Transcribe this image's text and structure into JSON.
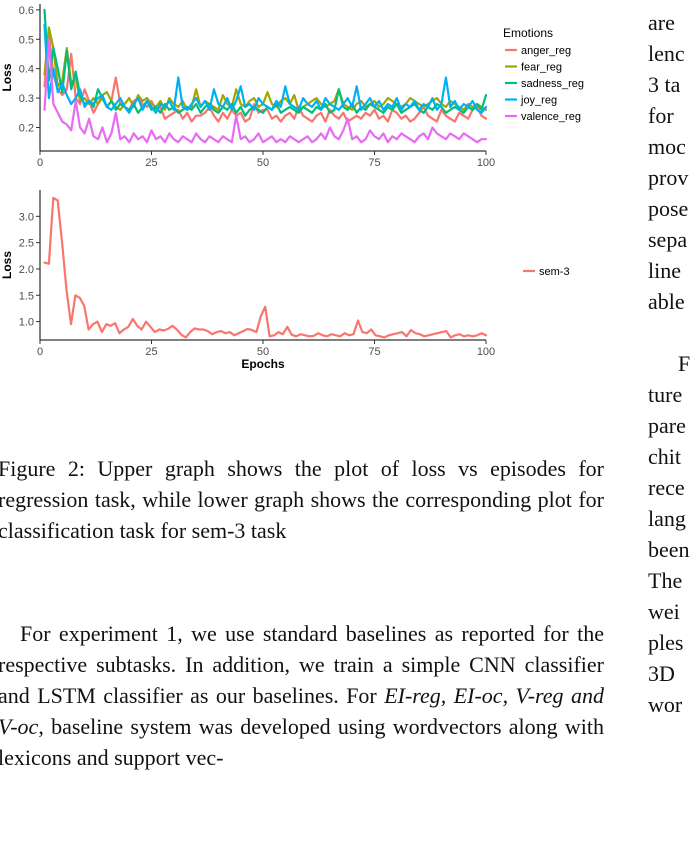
{
  "chart_data": [
    {
      "type": "line",
      "xlabel": "",
      "ylabel": "Loss",
      "xlim": [
        0,
        100
      ],
      "ylim": [
        0.12,
        0.62
      ],
      "xticks": [
        0,
        25,
        50,
        75,
        100
      ],
      "yticks": [
        0.2,
        0.3,
        0.4,
        0.5,
        0.6
      ],
      "ytick_labels": [
        "0.2",
        "0.3",
        "0.4",
        "0.5",
        "0.6"
      ],
      "grid": false,
      "legend": {
        "title": "Emotions",
        "placement": "right"
      },
      "series": [
        {
          "name": "anger_reg",
          "color": "#F8766D",
          "values": [
            0.34,
            0.52,
            0.38,
            0.33,
            0.31,
            0.33,
            0.45,
            0.3,
            0.28,
            0.33,
            0.29,
            0.25,
            0.28,
            0.3,
            0.27,
            0.29,
            0.37,
            0.28,
            0.27,
            0.26,
            0.29,
            0.3,
            0.28,
            0.27,
            0.29,
            0.26,
            0.27,
            0.23,
            0.24,
            0.25,
            0.26,
            0.23,
            0.25,
            0.22,
            0.24,
            0.24,
            0.25,
            0.27,
            0.24,
            0.22,
            0.25,
            0.23,
            0.26,
            0.24,
            0.25,
            0.22,
            0.23,
            0.28,
            0.25,
            0.26,
            0.26,
            0.23,
            0.24,
            0.22,
            0.24,
            0.25,
            0.23,
            0.27,
            0.24,
            0.23,
            0.22,
            0.24,
            0.25,
            0.22,
            0.26,
            0.24,
            0.23,
            0.25,
            0.22,
            0.23,
            0.24,
            0.23,
            0.25,
            0.24,
            0.26,
            0.23,
            0.24,
            0.22,
            0.26,
            0.25,
            0.23,
            0.24,
            0.22,
            0.23,
            0.25,
            0.27,
            0.24,
            0.23,
            0.22,
            0.26,
            0.24,
            0.23,
            0.22,
            0.25,
            0.24,
            0.23,
            0.26,
            0.27,
            0.24,
            0.23
          ]
        },
        {
          "name": "fear_reg",
          "color": "#A3A500",
          "values": [
            0.38,
            0.54,
            0.47,
            0.34,
            0.36,
            0.47,
            0.35,
            0.37,
            0.29,
            0.3,
            0.28,
            0.3,
            0.28,
            0.31,
            0.32,
            0.29,
            0.27,
            0.26,
            0.28,
            0.3,
            0.27,
            0.31,
            0.29,
            0.3,
            0.28,
            0.27,
            0.29,
            0.26,
            0.3,
            0.28,
            0.27,
            0.29,
            0.26,
            0.27,
            0.33,
            0.27,
            0.29,
            0.28,
            0.27,
            0.26,
            0.31,
            0.28,
            0.27,
            0.33,
            0.28,
            0.27,
            0.29,
            0.3,
            0.27,
            0.28,
            0.32,
            0.28,
            0.27,
            0.29,
            0.3,
            0.28,
            0.31,
            0.26,
            0.27,
            0.28,
            0.29,
            0.3,
            0.28,
            0.27,
            0.28,
            0.29,
            0.33,
            0.28,
            0.27,
            0.26,
            0.28,
            0.29,
            0.27,
            0.28,
            0.29,
            0.27,
            0.28,
            0.3,
            0.29,
            0.28,
            0.27,
            0.28,
            0.3,
            0.29,
            0.28,
            0.27,
            0.28,
            0.29,
            0.3,
            0.28,
            0.27,
            0.29,
            0.28,
            0.27,
            0.26,
            0.28,
            0.27,
            0.28,
            0.27,
            0.26
          ]
        },
        {
          "name": "sadness_reg",
          "color": "#00BF7D",
          "values": [
            0.6,
            0.36,
            0.47,
            0.4,
            0.32,
            0.46,
            0.33,
            0.39,
            0.31,
            0.28,
            0.29,
            0.27,
            0.33,
            0.3,
            0.27,
            0.29,
            0.26,
            0.28,
            0.27,
            0.26,
            0.28,
            0.25,
            0.27,
            0.29,
            0.26,
            0.27,
            0.25,
            0.28,
            0.26,
            0.27,
            0.25,
            0.26,
            0.27,
            0.26,
            0.28,
            0.25,
            0.27,
            0.28,
            0.26,
            0.25,
            0.27,
            0.26,
            0.28,
            0.25,
            0.27,
            0.24,
            0.26,
            0.27,
            0.26,
            0.25,
            0.27,
            0.26,
            0.28,
            0.25,
            0.26,
            0.27,
            0.26,
            0.25,
            0.27,
            0.26,
            0.25,
            0.27,
            0.26,
            0.28,
            0.25,
            0.26,
            0.33,
            0.27,
            0.26,
            0.28,
            0.25,
            0.27,
            0.26,
            0.28,
            0.27,
            0.26,
            0.25,
            0.27,
            0.26,
            0.28,
            0.25,
            0.26,
            0.27,
            0.28,
            0.26,
            0.25,
            0.27,
            0.26,
            0.28,
            0.27,
            0.25,
            0.26,
            0.27,
            0.26,
            0.25,
            0.27,
            0.26,
            0.28,
            0.26,
            0.31
          ]
        },
        {
          "name": "joy_reg",
          "color": "#00B0F6",
          "values": [
            0.55,
            0.3,
            0.4,
            0.32,
            0.35,
            0.31,
            0.28,
            0.3,
            0.33,
            0.27,
            0.29,
            0.28,
            0.3,
            0.31,
            0.27,
            0.26,
            0.28,
            0.3,
            0.27,
            0.25,
            0.28,
            0.3,
            0.26,
            0.29,
            0.27,
            0.25,
            0.28,
            0.27,
            0.29,
            0.26,
            0.37,
            0.27,
            0.26,
            0.28,
            0.3,
            0.27,
            0.29,
            0.26,
            0.33,
            0.28,
            0.27,
            0.3,
            0.26,
            0.29,
            0.34,
            0.27,
            0.28,
            0.26,
            0.3,
            0.28,
            0.27,
            0.26,
            0.29,
            0.27,
            0.34,
            0.28,
            0.27,
            0.26,
            0.3,
            0.28,
            0.27,
            0.29,
            0.26,
            0.3,
            0.28,
            0.27,
            0.26,
            0.28,
            0.3,
            0.27,
            0.34,
            0.26,
            0.28,
            0.3,
            0.27,
            0.29,
            0.26,
            0.28,
            0.27,
            0.3,
            0.26,
            0.28,
            0.27,
            0.29,
            0.26,
            0.28,
            0.27,
            0.3,
            0.26,
            0.28,
            0.37,
            0.27,
            0.29,
            0.26,
            0.28,
            0.27,
            0.29,
            0.26,
            0.25,
            0.27
          ]
        },
        {
          "name": "valence_reg",
          "color": "#E76BF3",
          "values": [
            0.26,
            0.5,
            0.28,
            0.25,
            0.22,
            0.21,
            0.19,
            0.29,
            0.2,
            0.18,
            0.23,
            0.17,
            0.16,
            0.2,
            0.15,
            0.18,
            0.25,
            0.16,
            0.17,
            0.15,
            0.18,
            0.16,
            0.17,
            0.15,
            0.19,
            0.16,
            0.17,
            0.15,
            0.18,
            0.16,
            0.15,
            0.17,
            0.16,
            0.15,
            0.18,
            0.16,
            0.15,
            0.17,
            0.16,
            0.15,
            0.17,
            0.16,
            0.15,
            0.24,
            0.16,
            0.17,
            0.15,
            0.16,
            0.18,
            0.15,
            0.16,
            0.17,
            0.15,
            0.16,
            0.15,
            0.17,
            0.16,
            0.15,
            0.16,
            0.17,
            0.15,
            0.16,
            0.18,
            0.16,
            0.2,
            0.17,
            0.16,
            0.19,
            0.23,
            0.16,
            0.17,
            0.15,
            0.16,
            0.19,
            0.17,
            0.16,
            0.18,
            0.15,
            0.17,
            0.16,
            0.18,
            0.17,
            0.16,
            0.15,
            0.17,
            0.18,
            0.16,
            0.2,
            0.18,
            0.17,
            0.16,
            0.18,
            0.17,
            0.16,
            0.18,
            0.17,
            0.16,
            0.15,
            0.16,
            0.16
          ]
        }
      ]
    },
    {
      "type": "line",
      "xlabel": "Epochs",
      "ylabel": "Loss",
      "xlim": [
        0,
        100
      ],
      "ylim": [
        0.65,
        3.5
      ],
      "xticks": [
        0,
        25,
        50,
        75,
        100
      ],
      "yticks": [
        1.0,
        1.5,
        2.0,
        2.5,
        3.0
      ],
      "ytick_labels": [
        "1.0",
        "1.5",
        "2.0",
        "2.5",
        "3.0"
      ],
      "grid": false,
      "legend": {
        "title": "",
        "placement": "right"
      },
      "series": [
        {
          "name": "sem-3",
          "color": "#F8766D",
          "values": [
            2.12,
            2.1,
            3.35,
            3.3,
            2.5,
            1.6,
            0.95,
            1.5,
            1.45,
            1.3,
            0.85,
            0.95,
            1.0,
            0.8,
            0.95,
            0.92,
            0.97,
            0.78,
            0.85,
            0.9,
            1.05,
            0.92,
            0.85,
            1.0,
            0.9,
            0.8,
            0.85,
            0.83,
            0.86,
            0.92,
            0.85,
            0.75,
            0.7,
            0.8,
            0.87,
            0.85,
            0.85,
            0.82,
            0.76,
            0.8,
            0.82,
            0.78,
            0.8,
            0.74,
            0.78,
            0.82,
            0.86,
            0.84,
            0.8,
            1.1,
            1.28,
            0.72,
            0.74,
            0.8,
            0.76,
            0.9,
            0.75,
            0.72,
            0.76,
            0.74,
            0.72,
            0.73,
            0.78,
            0.74,
            0.72,
            0.76,
            0.74,
            0.72,
            0.78,
            0.74,
            0.76,
            1.02,
            0.8,
            0.78,
            0.85,
            0.74,
            0.72,
            0.7,
            0.74,
            0.76,
            0.78,
            0.8,
            0.72,
            0.84,
            0.78,
            0.76,
            0.72,
            0.74,
            0.76,
            0.78,
            0.8,
            0.82,
            0.7,
            0.74,
            0.76,
            0.72,
            0.74,
            0.72,
            0.74,
            0.78,
            0.74
          ]
        }
      ]
    }
  ],
  "caption": "Figure 2: Upper graph shows the plot of loss vs episodes for regression task, while lower graph shows the corresponding plot for classification task for sem-3 task",
  "body": {
    "p1": "For experiment 1, we use standard baselines as reported for the respective subtasks. In addition, we train a simple CNN classifier and LSTM classifier as our baselines. For ",
    "p1_italic": "EI-reg, EI-oc, V-reg and V-oc",
    "p1_end": ", baseline system was developed using wordvectors along with lexicons and support vec-"
  },
  "right_column": [
    "are",
    "lenc",
    "3 ta",
    "for",
    "moc",
    "prov",
    "pose",
    "sepa",
    "line",
    "able",
    "",
    "F",
    "ture",
    "pare",
    "chit",
    "rece",
    "lang",
    "been",
    "The",
    "wei",
    "ples",
    "3D",
    "wor"
  ]
}
